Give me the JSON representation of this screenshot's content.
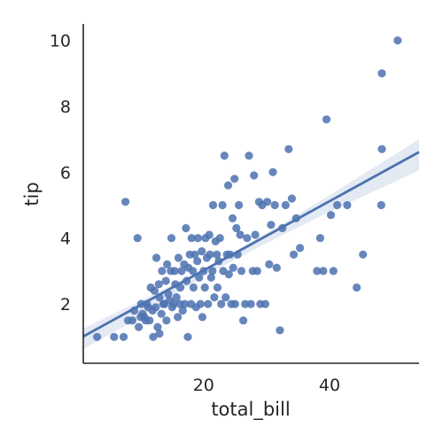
{
  "chart_data": {
    "type": "scatter",
    "xlabel": "total_bill",
    "ylabel": "tip",
    "xlim": [
      0.9,
      54.2
    ],
    "ylim": [
      0.2,
      10.5
    ],
    "xticks": [
      20,
      40
    ],
    "yticks": [
      2,
      4,
      6,
      8,
      10
    ],
    "grid": false,
    "regression": {
      "intercept": 0.92,
      "slope": 0.105,
      "ci_band": [
        [
          0.9,
          0.63,
          1.25
        ],
        [
          10,
          1.6,
          2.1
        ],
        [
          20,
          2.85,
          3.05
        ],
        [
          30,
          3.85,
          4.15
        ],
        [
          40,
          4.8,
          5.3
        ],
        [
          54.2,
          6.05,
          7.0
        ]
      ]
    },
    "points": [
      [
        3.1,
        1.0
      ],
      [
        5.8,
        1.0
      ],
      [
        7.3,
        1.0
      ],
      [
        8.0,
        1.5
      ],
      [
        7.6,
        5.1
      ],
      [
        8.7,
        1.5
      ],
      [
        9.0,
        1.8
      ],
      [
        9.5,
        4.0
      ],
      [
        9.7,
        1.3
      ],
      [
        10.0,
        1.6
      ],
      [
        10.1,
        2.0
      ],
      [
        10.3,
        1.7
      ],
      [
        10.6,
        1.6
      ],
      [
        10.8,
        1.5
      ],
      [
        11.0,
        2.0
      ],
      [
        11.2,
        1.9
      ],
      [
        11.4,
        1.5
      ],
      [
        11.6,
        2.5
      ],
      [
        11.9,
        1.8
      ],
      [
        12.0,
        1.0
      ],
      [
        12.2,
        2.4
      ],
      [
        12.4,
        1.9
      ],
      [
        12.5,
        3.4
      ],
      [
        12.7,
        1.3
      ],
      [
        12.9,
        2.6
      ],
      [
        13.0,
        2.2
      ],
      [
        13.0,
        1.1
      ],
      [
        13.3,
        1.7
      ],
      [
        13.4,
        3.0
      ],
      [
        13.6,
        2.0
      ],
      [
        13.8,
        2.0
      ],
      [
        14.0,
        2.7
      ],
      [
        14.1,
        1.5
      ],
      [
        14.2,
        3.2
      ],
      [
        14.4,
        2.3
      ],
      [
        14.6,
        2.1
      ],
      [
        14.8,
        3.0
      ],
      [
        14.9,
        4.0
      ],
      [
        15.0,
        1.9
      ],
      [
        15.2,
        2.0
      ],
      [
        15.4,
        3.0
      ],
      [
        15.5,
        2.6
      ],
      [
        15.7,
        2.2
      ],
      [
        15.9,
        1.6
      ],
      [
        16.0,
        3.4
      ],
      [
        16.2,
        2.0
      ],
      [
        16.3,
        2.5
      ],
      [
        16.5,
        3.0
      ],
      [
        16.7,
        1.8
      ],
      [
        16.9,
        3.2
      ],
      [
        17.0,
        2.0
      ],
      [
        17.2,
        4.3
      ],
      [
        17.3,
        2.7
      ],
      [
        17.5,
        1.0
      ],
      [
        17.6,
        3.1
      ],
      [
        17.8,
        3.5
      ],
      [
        18.0,
        2.0
      ],
      [
        18.1,
        4.0
      ],
      [
        18.3,
        3.0
      ],
      [
        18.4,
        2.5
      ],
      [
        18.6,
        3.5
      ],
      [
        18.8,
        1.9
      ],
      [
        19.0,
        3.3
      ],
      [
        19.1,
        4.0
      ],
      [
        19.3,
        2.8
      ],
      [
        19.5,
        2.0
      ],
      [
        19.7,
        3.6
      ],
      [
        19.8,
        1.6
      ],
      [
        20.0,
        3.0
      ],
      [
        20.2,
        2.5
      ],
      [
        20.3,
        4.0
      ],
      [
        20.5,
        3.4
      ],
      [
        20.7,
        2.0
      ],
      [
        20.9,
        4.1
      ],
      [
        21.0,
        3.5
      ],
      [
        21.2,
        2.8
      ],
      [
        21.4,
        3.0
      ],
      [
        21.5,
        5.0
      ],
      [
        21.7,
        2.2
      ],
      [
        21.9,
        3.9
      ],
      [
        22.1,
        3.5
      ],
      [
        22.2,
        2.5
      ],
      [
        22.4,
        3.3
      ],
      [
        22.6,
        4.0
      ],
      [
        22.8,
        2.0
      ],
      [
        23.0,
        5.0
      ],
      [
        23.1,
        3.0
      ],
      [
        23.3,
        6.5
      ],
      [
        23.5,
        2.2
      ],
      [
        23.7,
        3.5
      ],
      [
        23.9,
        5.6
      ],
      [
        24.0,
        2.9
      ],
      [
        24.2,
        3.5
      ],
      [
        24.4,
        2.0
      ],
      [
        24.6,
        4.6
      ],
      [
        24.7,
        3.1
      ],
      [
        24.9,
        5.8
      ],
      [
        25.0,
        2.0
      ],
      [
        25.2,
        4.3
      ],
      [
        25.4,
        3.5
      ],
      [
        25.6,
        5.0
      ],
      [
        25.8,
        4.1
      ],
      [
        26.0,
        3.0
      ],
      [
        26.3,
        1.5
      ],
      [
        26.6,
        2.0
      ],
      [
        26.9,
        4.0
      ],
      [
        27.2,
        6.5
      ],
      [
        27.5,
        2.0
      ],
      [
        27.8,
        3.0
      ],
      [
        28.0,
        5.9
      ],
      [
        28.2,
        4.1
      ],
      [
        28.5,
        3.0
      ],
      [
        28.8,
        5.1
      ],
      [
        29.0,
        2.0
      ],
      [
        29.3,
        5.0
      ],
      [
        29.8,
        2.0
      ],
      [
        30.1,
        5.1
      ],
      [
        30.4,
        3.2
      ],
      [
        30.7,
        4.4
      ],
      [
        31.0,
        6.0
      ],
      [
        31.3,
        5.0
      ],
      [
        31.6,
        3.1
      ],
      [
        32.1,
        1.2
      ],
      [
        32.5,
        4.3
      ],
      [
        33.0,
        5.0
      ],
      [
        33.5,
        6.7
      ],
      [
        34.0,
        5.2
      ],
      [
        34.3,
        3.5
      ],
      [
        34.7,
        4.6
      ],
      [
        35.3,
        3.7
      ],
      [
        38.0,
        3.0
      ],
      [
        38.5,
        4.0
      ],
      [
        39.0,
        3.0
      ],
      [
        39.5,
        7.6
      ],
      [
        40.2,
        4.7
      ],
      [
        40.6,
        3.0
      ],
      [
        41.2,
        5.0
      ],
      [
        42.8,
        5.0
      ],
      [
        44.3,
        2.5
      ],
      [
        45.3,
        3.5
      ],
      [
        48.2,
        5.0
      ],
      [
        48.3,
        9.0
      ],
      [
        48.3,
        6.7
      ],
      [
        50.8,
        10.0
      ]
    ]
  }
}
